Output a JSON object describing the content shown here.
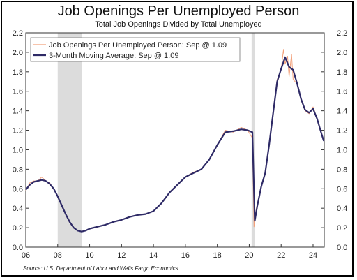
{
  "chart_data": {
    "type": "line",
    "title": "Job Openings Per Unemployed Person",
    "subtitle": "Total Job Openings Divided by Total Unemployed",
    "source": "Source: U.S. Department of Labor and Wells Fargo Economics",
    "xlim": [
      2006,
      2024.7
    ],
    "ylim": [
      0.0,
      2.2
    ],
    "x_ticks": [
      2006,
      2008,
      2010,
      2012,
      2014,
      2016,
      2018,
      2020,
      2022,
      2024
    ],
    "x_tick_labels": [
      "06",
      "08",
      "10",
      "12",
      "14",
      "16",
      "18",
      "20",
      "22",
      "24"
    ],
    "y_ticks": [
      0.0,
      0.2,
      0.4,
      0.6,
      0.8,
      1.0,
      1.2,
      1.4,
      1.6,
      1.8,
      2.0,
      2.2
    ],
    "y_tick_labels": [
      "0.0",
      "0.2",
      "0.4",
      "0.6",
      "0.8",
      "1.0",
      "1.2",
      "1.4",
      "1.6",
      "1.8",
      "2.0",
      "2.2"
    ],
    "recessions": [
      [
        2008.0,
        2009.5
      ],
      [
        2020.15,
        2020.35
      ]
    ],
    "legend_position": "top-left",
    "grid": false,
    "series": [
      {
        "name": "Job Openings Per Unemployed Person: Sep @ 1.09",
        "color": "#f2a07a",
        "style": "thin",
        "x": [
          2006.0,
          2006.25,
          2006.5,
          2006.75,
          2007.0,
          2007.25,
          2007.5,
          2007.75,
          2008.0,
          2008.25,
          2008.5,
          2008.75,
          2009.0,
          2009.25,
          2009.5,
          2009.75,
          2010.0,
          2010.5,
          2011.0,
          2011.5,
          2012.0,
          2012.5,
          2013.0,
          2013.5,
          2014.0,
          2014.5,
          2015.0,
          2015.5,
          2016.0,
          2016.5,
          2017.0,
          2017.5,
          2018.0,
          2018.5,
          2019.0,
          2019.5,
          2019.9,
          2020.2,
          2020.3,
          2020.45,
          2020.75,
          2021.0,
          2021.25,
          2021.5,
          2021.75,
          2022.0,
          2022.15,
          2022.25,
          2022.4,
          2022.5,
          2022.65,
          2022.75,
          2023.0,
          2023.25,
          2023.5,
          2023.75,
          2024.0,
          2024.25,
          2024.5,
          2024.67
        ],
        "values": [
          0.58,
          0.66,
          0.68,
          0.68,
          0.72,
          0.68,
          0.66,
          0.6,
          0.52,
          0.43,
          0.34,
          0.25,
          0.2,
          0.17,
          0.16,
          0.17,
          0.19,
          0.21,
          0.23,
          0.26,
          0.28,
          0.31,
          0.33,
          0.34,
          0.37,
          0.45,
          0.56,
          0.64,
          0.72,
          0.77,
          0.8,
          0.9,
          1.05,
          1.2,
          1.18,
          1.23,
          1.2,
          1.12,
          0.21,
          0.4,
          0.62,
          0.75,
          1.05,
          1.4,
          1.72,
          1.82,
          2.03,
          1.88,
          1.96,
          1.75,
          1.98,
          1.72,
          1.68,
          1.51,
          1.4,
          1.37,
          1.44,
          1.32,
          1.18,
          1.09
        ]
      },
      {
        "name": "3-Month Moving Average: Sep @ 1.09",
        "color": "#2e2a66",
        "style": "thick",
        "x": [
          2006.0,
          2006.25,
          2006.5,
          2006.75,
          2007.0,
          2007.25,
          2007.5,
          2007.75,
          2008.0,
          2008.25,
          2008.5,
          2008.75,
          2009.0,
          2009.25,
          2009.5,
          2009.75,
          2010.0,
          2010.5,
          2011.0,
          2011.5,
          2012.0,
          2012.5,
          2013.0,
          2013.5,
          2014.0,
          2014.5,
          2015.0,
          2015.5,
          2016.0,
          2016.5,
          2017.0,
          2017.5,
          2018.0,
          2018.5,
          2019.0,
          2019.5,
          2019.9,
          2020.2,
          2020.35,
          2020.5,
          2020.75,
          2021.0,
          2021.25,
          2021.5,
          2021.75,
          2022.0,
          2022.25,
          2022.5,
          2022.75,
          2023.0,
          2023.25,
          2023.5,
          2023.75,
          2024.0,
          2024.25,
          2024.5,
          2024.67
        ],
        "values": [
          0.59,
          0.64,
          0.67,
          0.68,
          0.69,
          0.68,
          0.65,
          0.6,
          0.52,
          0.43,
          0.34,
          0.26,
          0.2,
          0.17,
          0.16,
          0.17,
          0.19,
          0.21,
          0.23,
          0.26,
          0.28,
          0.31,
          0.33,
          0.34,
          0.37,
          0.45,
          0.56,
          0.64,
          0.72,
          0.76,
          0.8,
          0.9,
          1.05,
          1.18,
          1.19,
          1.21,
          1.2,
          1.18,
          0.27,
          0.42,
          0.62,
          0.76,
          1.05,
          1.38,
          1.7,
          1.83,
          1.95,
          1.85,
          1.82,
          1.68,
          1.52,
          1.41,
          1.38,
          1.42,
          1.32,
          1.18,
          1.09
        ]
      }
    ]
  }
}
